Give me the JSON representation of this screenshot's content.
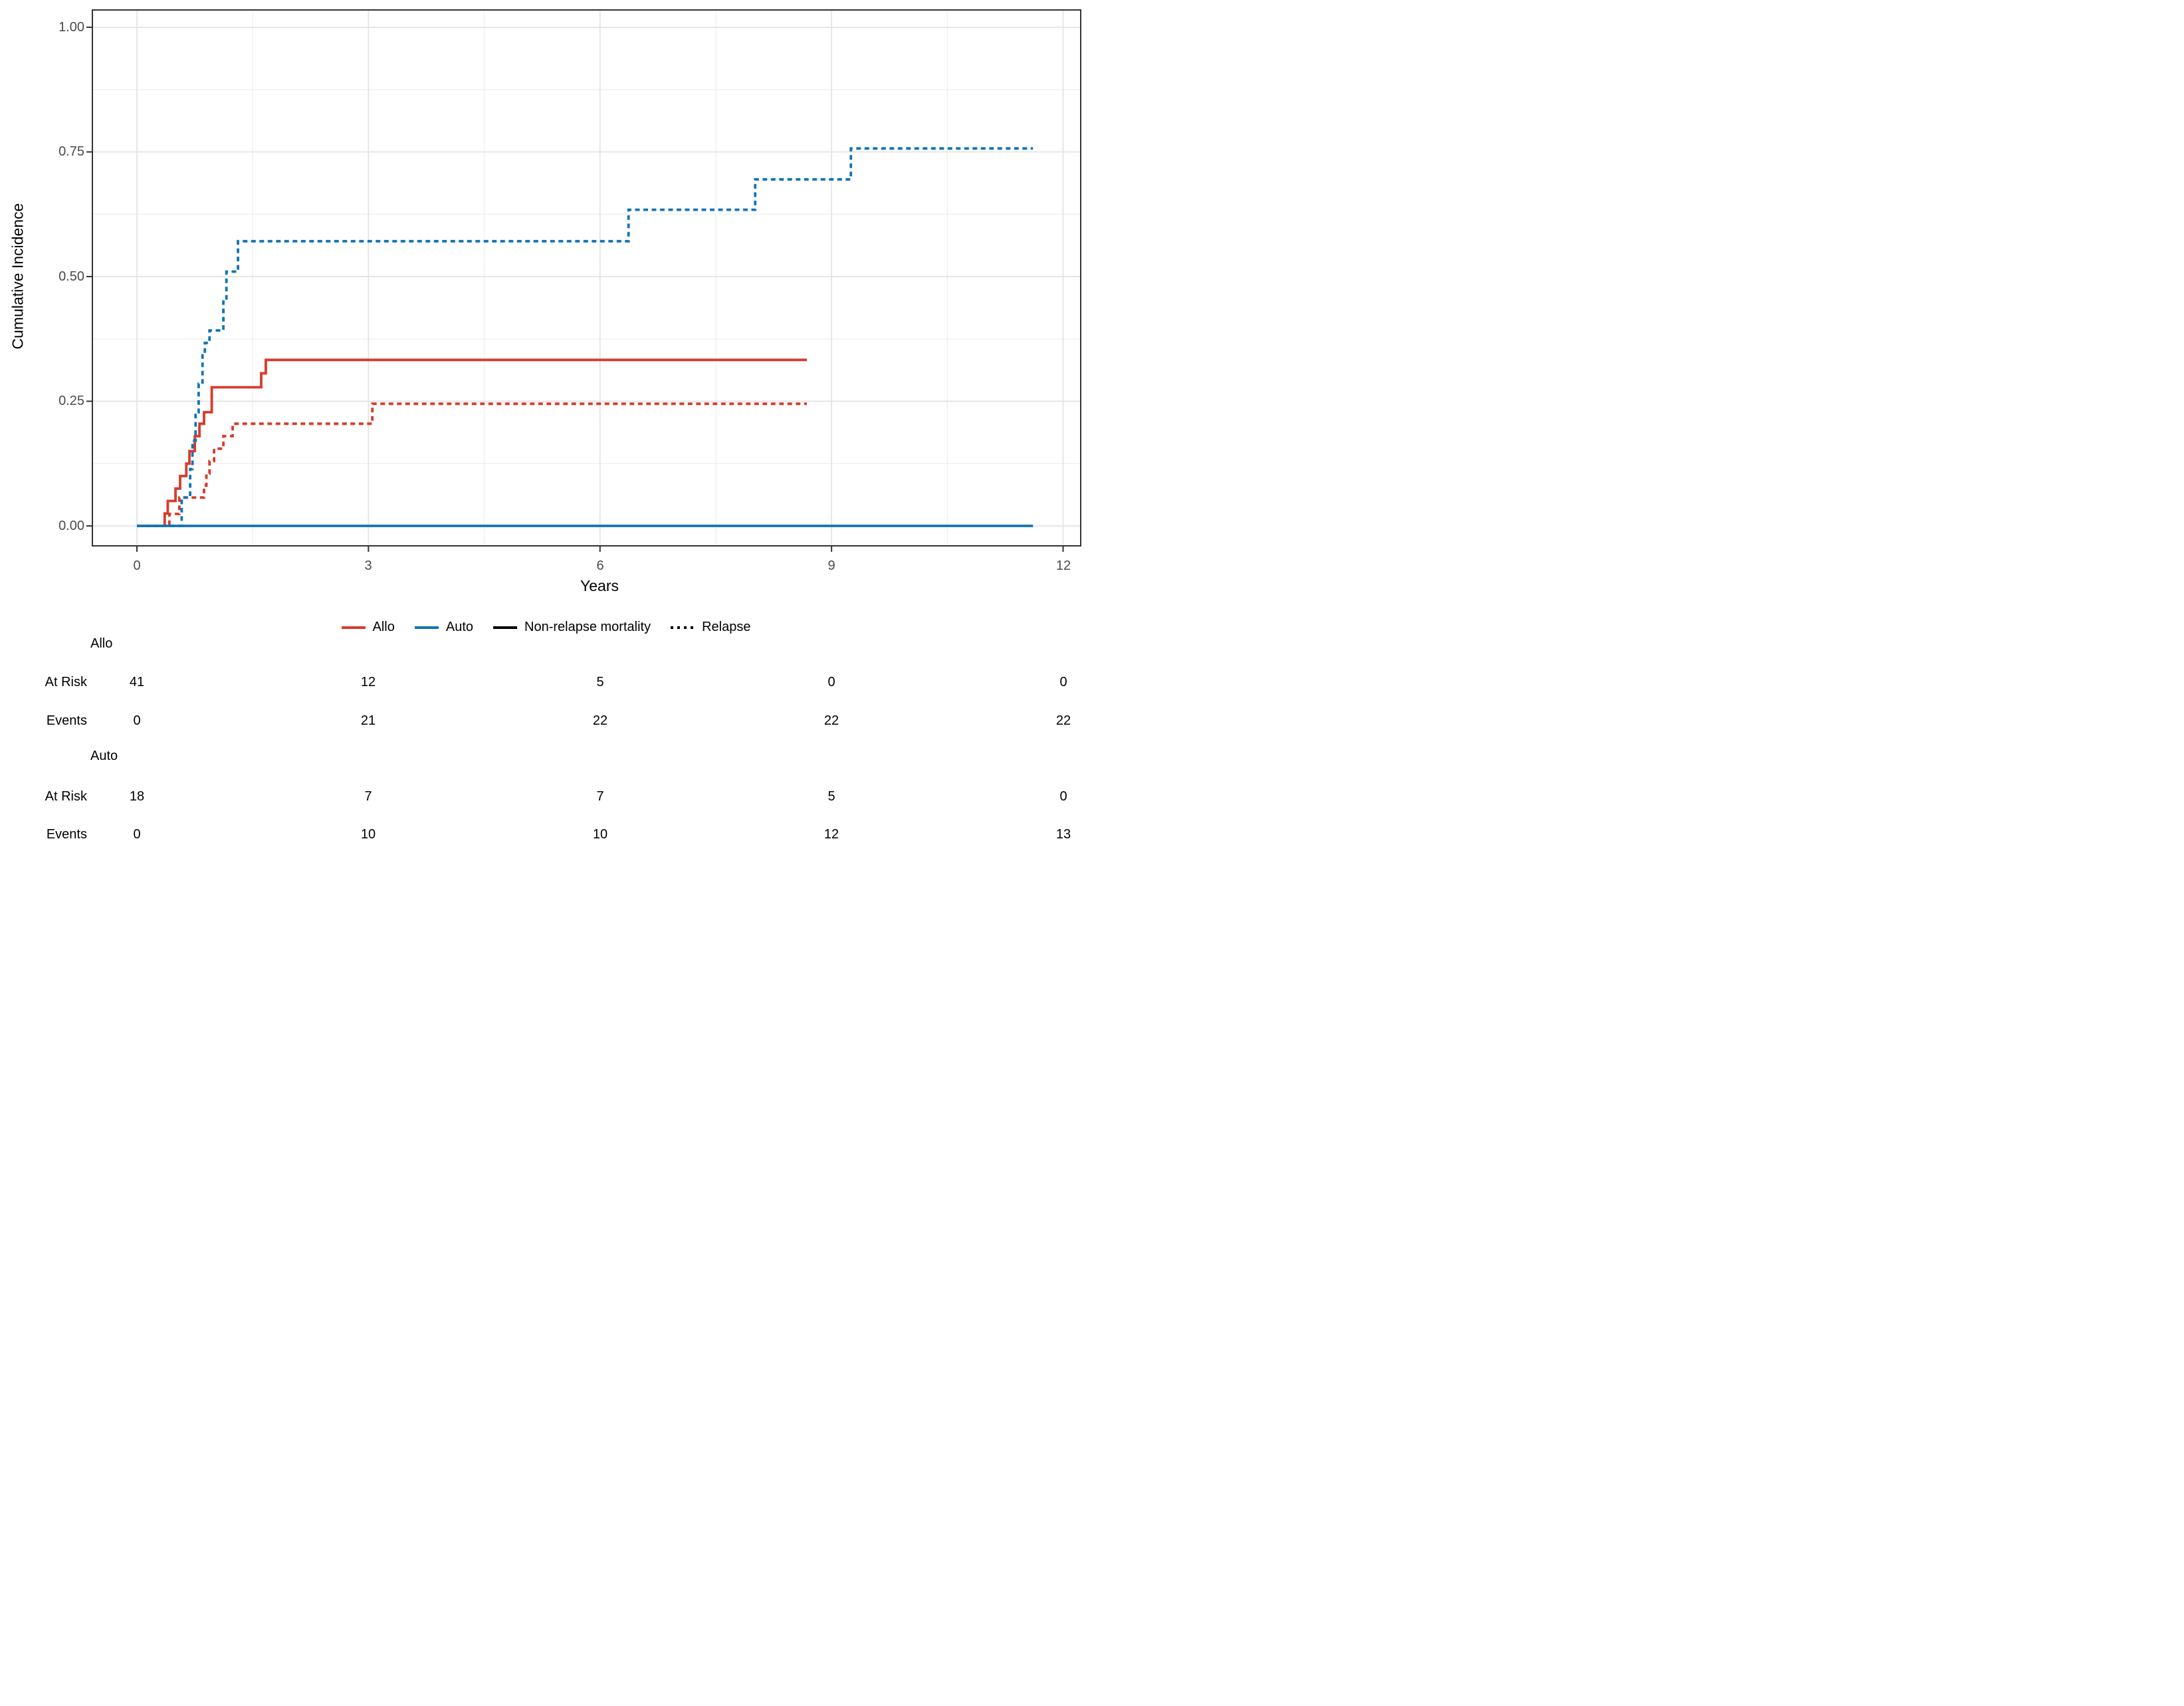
{
  "figure": {
    "y_axis_title": "Cumulative Incidence",
    "x_axis_title": "Years",
    "y_tick_labels": [
      "1.00",
      "0.75",
      "0.50",
      "0.25",
      "0.00"
    ],
    "x_tick_labels": [
      "0",
      "3",
      "6",
      "9",
      "12"
    ]
  },
  "legend": {
    "items": [
      {
        "label": "Allo",
        "color": "#D73B2B",
        "style": "solid"
      },
      {
        "label": "Auto",
        "color": "#1274B5",
        "style": "solid"
      },
      {
        "label": "Non-relapse mortality",
        "color": "#000000",
        "style": "solid"
      },
      {
        "label": "Relapse",
        "color": "#000000",
        "style": "dashed"
      }
    ]
  },
  "risk_table": {
    "at_risk_label": "At Risk",
    "events_label": "Events",
    "groups": [
      {
        "name": "Allo",
        "at_risk": [
          "41",
          "12",
          "5",
          "0",
          "0"
        ],
        "events": [
          "0",
          "21",
          "22",
          "22",
          "22"
        ]
      },
      {
        "name": "Auto",
        "at_risk": [
          "18",
          "7",
          "7",
          "5",
          "0"
        ],
        "events": [
          "0",
          "10",
          "10",
          "12",
          "13"
        ]
      }
    ]
  },
  "chart_data": {
    "type": "line",
    "subtype": "step-cumulative-incidence",
    "title": "",
    "xlabel": "Years",
    "ylabel": "Cumulative Incidence",
    "xlim": [
      -0.58,
      12.22
    ],
    "ylim": [
      -0.04,
      1.035
    ],
    "x_ticks": [
      0,
      3,
      6,
      9,
      12
    ],
    "x_minor": [
      1.5,
      4.5,
      7.5,
      10.5
    ],
    "y_ticks": [
      0,
      0.25,
      0.5,
      0.75,
      1.0
    ],
    "y_minor": [
      0.125,
      0.375,
      0.625,
      0.875
    ],
    "grid": true,
    "legend_position": "bottom",
    "series": [
      {
        "name": "Allo - Non-relapse mortality",
        "group": "Allo",
        "event": "Non-relapse mortality",
        "color": "#D73B2B",
        "dash": "solid",
        "points": [
          [
            0,
            0
          ],
          [
            0.36,
            0
          ],
          [
            0.36,
            0.025
          ],
          [
            0.4,
            0.025
          ],
          [
            0.4,
            0.05
          ],
          [
            0.5,
            0.05
          ],
          [
            0.5,
            0.075
          ],
          [
            0.56,
            0.075
          ],
          [
            0.56,
            0.1
          ],
          [
            0.64,
            0.1
          ],
          [
            0.64,
            0.125
          ],
          [
            0.68,
            0.125
          ],
          [
            0.68,
            0.15
          ],
          [
            0.75,
            0.15
          ],
          [
            0.75,
            0.18
          ],
          [
            0.81,
            0.18
          ],
          [
            0.81,
            0.205
          ],
          [
            0.87,
            0.205
          ],
          [
            0.87,
            0.228
          ],
          [
            0.97,
            0.228
          ],
          [
            0.97,
            0.278
          ],
          [
            1.61,
            0.278
          ],
          [
            1.61,
            0.306
          ],
          [
            1.67,
            0.306
          ],
          [
            1.67,
            0.333
          ],
          [
            8.68,
            0.333
          ]
        ]
      },
      {
        "name": "Allo - Relapse",
        "group": "Allo",
        "event": "Relapse",
        "color": "#D73B2B",
        "dash": "dashed",
        "points": [
          [
            0,
            0
          ],
          [
            0.42,
            0
          ],
          [
            0.42,
            0.024
          ],
          [
            0.55,
            0.024
          ],
          [
            0.55,
            0.057
          ],
          [
            0.87,
            0.057
          ],
          [
            0.87,
            0.081
          ],
          [
            0.9,
            0.081
          ],
          [
            0.9,
            0.105
          ],
          [
            0.94,
            0.105
          ],
          [
            0.94,
            0.13
          ],
          [
            1.0,
            0.13
          ],
          [
            1.0,
            0.155
          ],
          [
            1.12,
            0.155
          ],
          [
            1.12,
            0.18
          ],
          [
            1.24,
            0.18
          ],
          [
            1.24,
            0.205
          ],
          [
            3.05,
            0.205
          ],
          [
            3.05,
            0.245
          ],
          [
            8.68,
            0.245
          ]
        ]
      },
      {
        "name": "Auto - Relapse",
        "group": "Auto",
        "event": "Relapse",
        "color": "#1274B5",
        "dash": "dashed",
        "points": [
          [
            0,
            0
          ],
          [
            0.58,
            0
          ],
          [
            0.58,
            0.057
          ],
          [
            0.69,
            0.057
          ],
          [
            0.69,
            0.114
          ],
          [
            0.72,
            0.114
          ],
          [
            0.72,
            0.171
          ],
          [
            0.76,
            0.171
          ],
          [
            0.76,
            0.228
          ],
          [
            0.8,
            0.228
          ],
          [
            0.8,
            0.285
          ],
          [
            0.85,
            0.285
          ],
          [
            0.85,
            0.342
          ],
          [
            0.88,
            0.342
          ],
          [
            0.88,
            0.367
          ],
          [
            0.94,
            0.367
          ],
          [
            0.94,
            0.392
          ],
          [
            1.12,
            0.392
          ],
          [
            1.12,
            0.453
          ],
          [
            1.16,
            0.453
          ],
          [
            1.16,
            0.51
          ],
          [
            1.31,
            0.51
          ],
          [
            1.31,
            0.571
          ],
          [
            6.37,
            0.571
          ],
          [
            6.37,
            0.634
          ],
          [
            8.01,
            0.634
          ],
          [
            8.01,
            0.695
          ],
          [
            9.25,
            0.695
          ],
          [
            9.25,
            0.757
          ],
          [
            11.61,
            0.757
          ]
        ]
      },
      {
        "name": "Auto - Non-relapse mortality",
        "group": "Auto",
        "event": "Non-relapse mortality",
        "color": "#1274B5",
        "dash": "solid",
        "points": [
          [
            0,
            0
          ],
          [
            11.61,
            0
          ]
        ]
      }
    ]
  }
}
